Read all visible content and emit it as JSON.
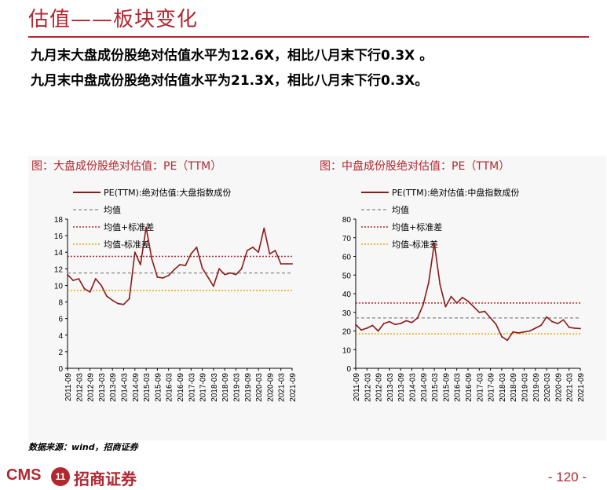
{
  "header": {
    "title": "估值——板块变化"
  },
  "bullets": [
    "九月末大盘成份股绝对估值水平为12.6X，相比八月末下行0.3X 。",
    "九月末中盘成份股绝对估值水平为21.3X，相比八月末下行0.3X。"
  ],
  "source": "数据来源：wind，招商证券",
  "footer": {
    "logo_text": "CMS",
    "logo_badge": "11",
    "logo_cn": "招商证券",
    "page": "- 120 -"
  },
  "colors": {
    "accent": "#b3272f",
    "series": "#8b1a1a",
    "mean": "#999999",
    "upper": "#b3272f",
    "lower": "#e8a800"
  },
  "chart_data": [
    {
      "type": "line",
      "title": "图：大盘成份股绝对估值：PE（TTM）",
      "legend": [
        "PE(TTM):绝对估值:大盘指数成份",
        "均值",
        "均值+标准差",
        "均值-标准差"
      ],
      "legend_position": "top",
      "x_ticks": [
        "2011-09",
        "2012-03",
        "2012-09",
        "2013-03",
        "2013-09",
        "2014-03",
        "2014-09",
        "2015-03",
        "2015-09",
        "2016-03",
        "2016-09",
        "2017-03",
        "2017-09",
        "2018-03",
        "2018-09",
        "2019-03",
        "2019-09",
        "2020-03",
        "2020-09",
        "2021-03",
        "2021-09"
      ],
      "ylim": [
        0,
        18
      ],
      "y_ticks": [
        0,
        2,
        4,
        6,
        8,
        10,
        12,
        14,
        16,
        18
      ],
      "mean": 11.5,
      "mean_plus_std": 13.5,
      "mean_minus_std": 9.4,
      "series": {
        "x": [
          0,
          0.5,
          1,
          1.5,
          2,
          2.5,
          3,
          3.5,
          4,
          4.5,
          5,
          5.5,
          6,
          6.5,
          7,
          7.5,
          8,
          8.5,
          9,
          9.5,
          10,
          10.5,
          11,
          11.5,
          12,
          12.5,
          13,
          13.5,
          14,
          14.5,
          15,
          15.5,
          16,
          16.5,
          17,
          17.5,
          18,
          18.5,
          19,
          19.5,
          20
        ],
        "values": [
          11.3,
          10.6,
          10.8,
          9.6,
          9.2,
          10.8,
          10.0,
          8.7,
          8.2,
          7.8,
          7.7,
          8.4,
          14.0,
          12.5,
          17.0,
          13.2,
          11.0,
          10.9,
          11.2,
          11.9,
          12.5,
          12.4,
          13.8,
          14.6,
          12.1,
          11.0,
          9.9,
          12.0,
          11.3,
          11.5,
          11.3,
          12.0,
          14.2,
          14.6,
          14.0,
          16.9,
          13.8,
          14.2,
          12.6,
          12.6,
          12.6
        ]
      }
    },
    {
      "type": "line",
      "title": "图：中盘成份股绝对估值：PE（TTM）",
      "legend": [
        "PE(TTM):绝对估值:中盘指数成份",
        "均值",
        "均值+标准差",
        "均值-标准差"
      ],
      "legend_position": "top",
      "x_ticks": [
        "2011-09",
        "2012-03",
        "2012-09",
        "2013-03",
        "2013-09",
        "2014-03",
        "2014-09",
        "2015-03",
        "2015-09",
        "2016-03",
        "2016-09",
        "2017-03",
        "2017-09",
        "2018-03",
        "2018-09",
        "2019-03",
        "2019-09",
        "2020-03",
        "2020-09",
        "2021-03",
        "2021-09"
      ],
      "ylim": [
        0,
        80
      ],
      "y_ticks": [
        0,
        10,
        20,
        30,
        40,
        50,
        60,
        70,
        80
      ],
      "mean": 27.0,
      "mean_plus_std": 35.0,
      "mean_minus_std": 18.5,
      "series": {
        "x": [
          0,
          0.5,
          1,
          1.5,
          2,
          2.5,
          3,
          3.5,
          4,
          4.5,
          5,
          5.5,
          6,
          6.5,
          7,
          7.5,
          8,
          8.5,
          9,
          9.5,
          10,
          10.5,
          11,
          11.5,
          12,
          12.5,
          13,
          13.5,
          14,
          14.5,
          15,
          15.5,
          16,
          16.5,
          17,
          17.5,
          18,
          18.5,
          19,
          19.5,
          20
        ],
        "values": [
          23.5,
          20.5,
          21.5,
          23.0,
          20.0,
          24.0,
          25.0,
          23.5,
          24.0,
          25.5,
          24.5,
          27.0,
          34.0,
          46.0,
          67.0,
          45.0,
          33.0,
          38.5,
          35.0,
          38.0,
          36.0,
          33.0,
          30.0,
          30.5,
          27.0,
          23.5,
          17.0,
          15.0,
          19.5,
          19.0,
          19.5,
          20.0,
          21.5,
          23.0,
          27.5,
          25.0,
          24.0,
          26.0,
          22.0,
          21.5,
          21.3
        ]
      }
    }
  ]
}
